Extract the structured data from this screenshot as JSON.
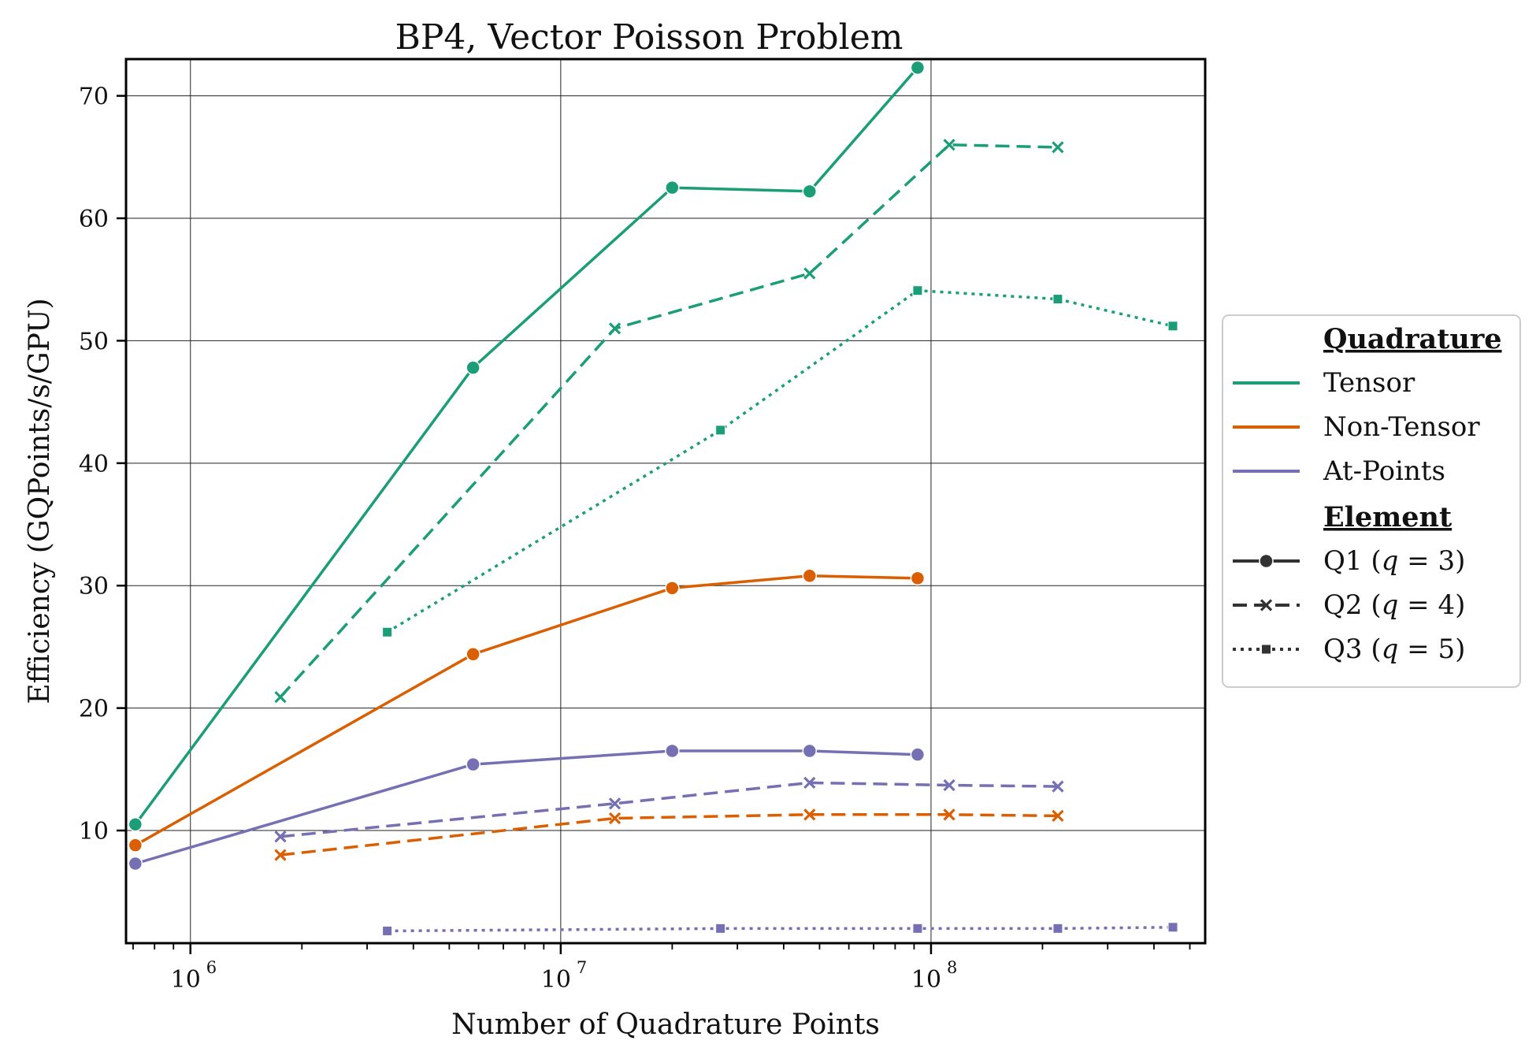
{
  "chart_data": {
    "type": "line",
    "title": "BP4, Vector Poisson Problem",
    "xlabel": "Number of Quadrature Points",
    "ylabel": "Efficiency (GQPoints/s/GPU)",
    "xscale": "log",
    "xlim": [
      670000,
      550000000
    ],
    "ylim": [
      0.8,
      73
    ],
    "x_ticks": [
      {
        "value": 1000000,
        "base": "10",
        "exp": "6"
      },
      {
        "value": 10000000,
        "base": "10",
        "exp": "7"
      },
      {
        "value": 100000000,
        "base": "10",
        "exp": "8"
      }
    ],
    "y_ticks": [
      10,
      20,
      30,
      40,
      50,
      60,
      70
    ],
    "grid": true,
    "legend": {
      "placement": "outside-right",
      "quadrature_title": "Quadrature",
      "element_title": "Element",
      "quadrature": [
        {
          "label": "Tensor",
          "color": "#1b9e77"
        },
        {
          "label": "Non-Tensor",
          "color": "#d95f02"
        },
        {
          "label": "At-Points",
          "color": "#7570b3"
        }
      ],
      "element": [
        {
          "label": "Q1 (q = 3)",
          "name": "Q1",
          "q": "3",
          "linestyle": "solid",
          "marker": "circle"
        },
        {
          "label": "Q2 (q = 4)",
          "name": "Q2",
          "q": "4",
          "linestyle": "dashed",
          "marker": "x"
        },
        {
          "label": "Q3 (q = 5)",
          "name": "Q3",
          "q": "5",
          "linestyle": "dotted",
          "marker": "square"
        }
      ]
    },
    "series": [
      {
        "quadrature": "Tensor",
        "element": "Q1",
        "color": "#1b9e77",
        "linestyle": "solid",
        "marker": "circle",
        "x": [
          710000,
          5800000,
          20000000,
          47000000,
          92000000
        ],
        "y": [
          10.5,
          47.8,
          62.5,
          62.2,
          72.3
        ]
      },
      {
        "quadrature": "Tensor",
        "element": "Q2",
        "color": "#1b9e77",
        "linestyle": "dashed",
        "marker": "x",
        "x": [
          1750000,
          14000000,
          47000000,
          112000000,
          220000000
        ],
        "y": [
          20.9,
          51.0,
          55.5,
          66.0,
          65.8
        ]
      },
      {
        "quadrature": "Tensor",
        "element": "Q3",
        "color": "#1b9e77",
        "linestyle": "dotted",
        "marker": "square",
        "x": [
          3400000,
          27000000,
          92000000,
          220000000,
          450000000
        ],
        "y": [
          26.2,
          42.7,
          54.1,
          53.4,
          51.2
        ]
      },
      {
        "quadrature": "Non-Tensor",
        "element": "Q1",
        "color": "#d95f02",
        "linestyle": "solid",
        "marker": "circle",
        "x": [
          710000,
          5800000,
          20000000,
          47000000,
          92000000
        ],
        "y": [
          8.8,
          24.4,
          29.8,
          30.8,
          30.6
        ]
      },
      {
        "quadrature": "Non-Tensor",
        "element": "Q2",
        "color": "#d95f02",
        "linestyle": "dashed",
        "marker": "x",
        "x": [
          1750000,
          14000000,
          47000000,
          112000000,
          220000000
        ],
        "y": [
          8.0,
          11.0,
          11.3,
          11.3,
          11.2
        ]
      },
      {
        "quadrature": "At-Points",
        "element": "Q1",
        "color": "#7570b3",
        "linestyle": "solid",
        "marker": "circle",
        "x": [
          710000,
          5800000,
          20000000,
          47000000,
          92000000
        ],
        "y": [
          7.3,
          15.4,
          16.5,
          16.5,
          16.2
        ]
      },
      {
        "quadrature": "At-Points",
        "element": "Q2",
        "color": "#7570b3",
        "linestyle": "dashed",
        "marker": "x",
        "x": [
          1750000,
          14000000,
          47000000,
          112000000,
          220000000
        ],
        "y": [
          9.5,
          12.2,
          13.9,
          13.7,
          13.6
        ]
      },
      {
        "quadrature": "At-Points",
        "element": "Q3",
        "color": "#7570b3",
        "linestyle": "dotted",
        "marker": "square",
        "x": [
          3400000,
          27000000,
          92000000,
          220000000,
          450000000
        ],
        "y": [
          1.8,
          2.0,
          2.0,
          2.0,
          2.1
        ]
      }
    ]
  }
}
